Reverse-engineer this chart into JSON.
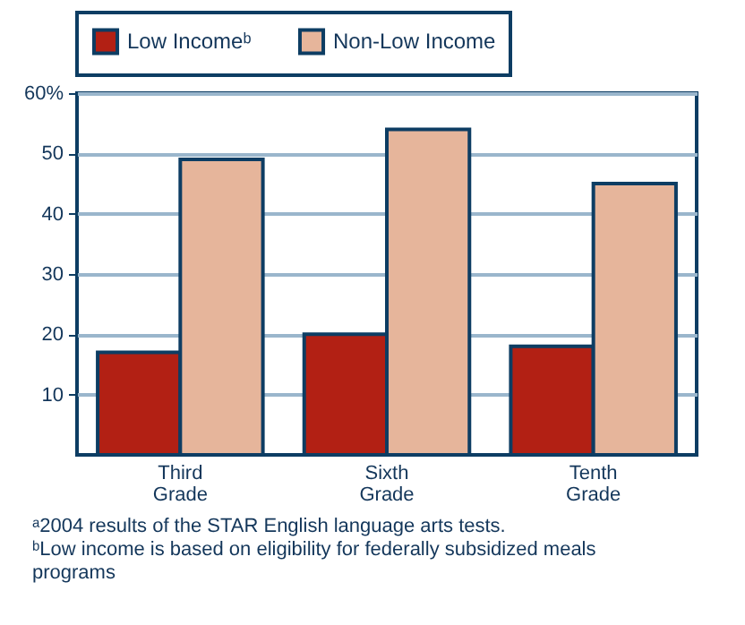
{
  "chart_data": {
    "type": "bar",
    "categories": [
      "Third Grade",
      "Sixth Grade",
      "Tenth Grade"
    ],
    "series": [
      {
        "name": "Low Incomeᵇ",
        "color": "#b22014",
        "values": [
          17,
          20,
          18
        ]
      },
      {
        "name": "Non-Low Income",
        "color": "#e6b59b",
        "values": [
          49,
          54,
          45
        ]
      }
    ],
    "ylim": [
      0,
      60
    ],
    "yticks": [
      10,
      20,
      30,
      40,
      50,
      {
        "value": 60,
        "label": "60%"
      }
    ],
    "grid": "y",
    "legend": "top",
    "annotations": [
      "ᵃ2004 results of the STAR English language arts tests.",
      "ᵇLow income is based on eligibility for federally subsidized meals programs"
    ]
  }
}
